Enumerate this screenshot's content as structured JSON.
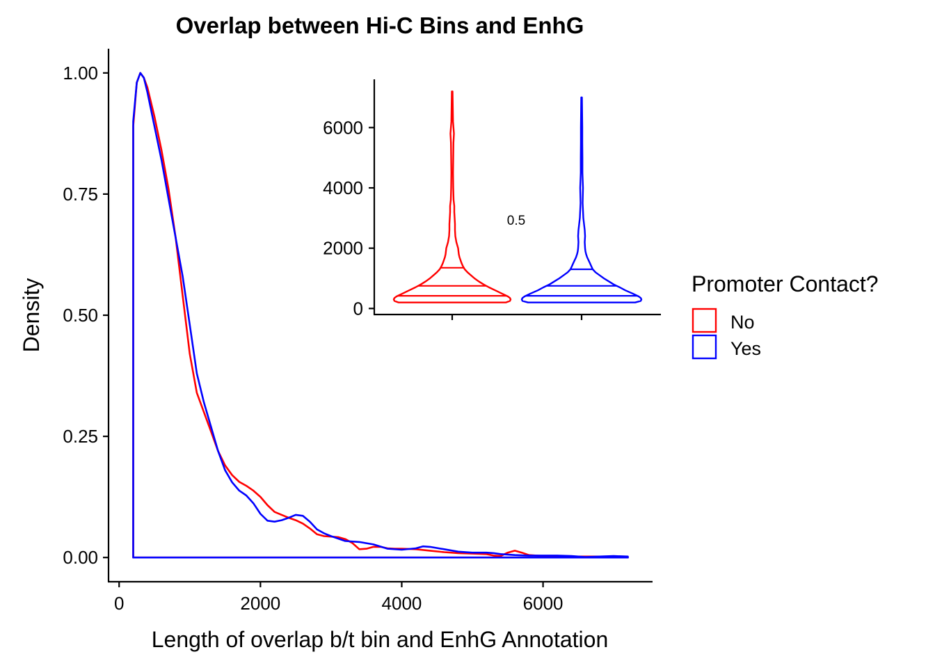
{
  "chart_data": [
    {
      "type": "line",
      "subtype": "density",
      "title": "Overlap between Hi-C Bins and EnhG",
      "xlabel": "Length of overlap b/t bin and EnhG Annotation",
      "ylabel": "Density",
      "xlim": [
        -150,
        7550
      ],
      "ylim": [
        -0.05,
        1.05
      ],
      "x_ticks": [
        0,
        2000,
        4000,
        6000
      ],
      "x_tick_labels": [
        "0",
        "2000",
        "4000",
        "6000"
      ],
      "y_ticks": [
        0,
        0.25,
        0.5,
        0.75,
        1.0
      ],
      "y_tick_labels": [
        "0.00",
        "0.25",
        "0.50",
        "0.75",
        "1.00"
      ],
      "grid": false,
      "series": [
        {
          "name": "No",
          "color": "#FF0000",
          "x": [
            200,
            200,
            250,
            300,
            350,
            400,
            500,
            600,
            700,
            800,
            900,
            1000,
            1100,
            1200,
            1300,
            1400,
            1500,
            1600,
            1700,
            1800,
            1900,
            2000,
            2100,
            2200,
            2300,
            2400,
            2500,
            2600,
            2700,
            2800,
            2900,
            3000,
            3100,
            3200,
            3300,
            3400,
            3500,
            3600,
            3700,
            3800,
            3900,
            4000,
            4200,
            4400,
            4600,
            4800,
            5000,
            5200,
            5300,
            5400,
            5500,
            5600,
            5700,
            5800,
            6000,
            6200,
            6400,
            6600,
            6800,
            7000,
            7200,
            7200
          ],
          "y": [
            0.0,
            0.89,
            0.98,
            1.0,
            0.99,
            0.97,
            0.91,
            0.84,
            0.76,
            0.66,
            0.54,
            0.42,
            0.34,
            0.3,
            0.26,
            0.22,
            0.19,
            0.17,
            0.156,
            0.148,
            0.138,
            0.125,
            0.108,
            0.094,
            0.088,
            0.082,
            0.077,
            0.07,
            0.06,
            0.048,
            0.044,
            0.043,
            0.042,
            0.038,
            0.03,
            0.017,
            0.018,
            0.022,
            0.022,
            0.019,
            0.018,
            0.018,
            0.017,
            0.014,
            0.011,
            0.009,
            0.008,
            0.007,
            0.004,
            0.003,
            0.01,
            0.014,
            0.01,
            0.005,
            0.003,
            0.003,
            0.002,
            0.002,
            0.002,
            0.002,
            0.001,
            0.0
          ]
        },
        {
          "name": "Yes",
          "color": "#0000FF",
          "x": [
            200,
            200,
            250,
            300,
            350,
            400,
            500,
            600,
            700,
            800,
            900,
            1000,
            1100,
            1200,
            1300,
            1400,
            1500,
            1600,
            1700,
            1800,
            1900,
            2000,
            2100,
            2200,
            2300,
            2400,
            2500,
            2600,
            2700,
            2800,
            2900,
            3000,
            3200,
            3400,
            3600,
            3800,
            4000,
            4200,
            4300,
            4400,
            4600,
            4800,
            5000,
            5200,
            5300,
            5400,
            5600,
            5800,
            6000,
            6200,
            6400,
            6600,
            6800,
            7000,
            7200,
            7200
          ],
          "y": [
            0.0,
            0.9,
            0.98,
            1.0,
            0.99,
            0.96,
            0.89,
            0.82,
            0.74,
            0.66,
            0.58,
            0.48,
            0.38,
            0.32,
            0.27,
            0.22,
            0.18,
            0.155,
            0.138,
            0.128,
            0.112,
            0.09,
            0.076,
            0.074,
            0.077,
            0.082,
            0.088,
            0.086,
            0.074,
            0.058,
            0.05,
            0.044,
            0.034,
            0.032,
            0.027,
            0.018,
            0.016,
            0.019,
            0.023,
            0.022,
            0.017,
            0.012,
            0.01,
            0.01,
            0.009,
            0.007,
            0.005,
            0.004,
            0.004,
            0.004,
            0.003,
            0.001,
            0.002,
            0.003,
            0.002,
            0.0
          ]
        }
      ]
    },
    {
      "type": "violin",
      "inset": true,
      "ylim": [
        -200,
        7600
      ],
      "y_ticks": [
        0,
        2000,
        4000,
        6000
      ],
      "y_tick_labels": [
        "0",
        "2000",
        "4000",
        "6000"
      ],
      "x_tick_labels": [
        "",
        ""
      ],
      "grid": false,
      "annotation": "0.5",
      "series": [
        {
          "name": "No",
          "color": "#FF0000",
          "quantiles": [
            420,
            750,
            1350
          ],
          "profile_y": [
            200,
            250,
            300,
            350,
            400,
            500,
            600,
            700,
            800,
            900,
            1000,
            1100,
            1200,
            1300,
            1400,
            1500,
            1600,
            1700,
            1800,
            1900,
            2000,
            2200,
            2400,
            2600,
            2800,
            3000,
            3200,
            3400,
            3600,
            4000,
            4500,
            5000,
            5500,
            5800,
            6200,
            7200
          ],
          "profile_half_width": [
            0.77,
            0.83,
            0.84,
            0.83,
            0.8,
            0.71,
            0.62,
            0.53,
            0.45,
            0.38,
            0.32,
            0.27,
            0.22,
            0.18,
            0.155,
            0.135,
            0.12,
            0.105,
            0.095,
            0.09,
            0.085,
            0.06,
            0.045,
            0.04,
            0.04,
            0.035,
            0.03,
            0.03,
            0.02,
            0.015,
            0.012,
            0.015,
            0.018,
            0.025,
            0.012,
            0.005
          ]
        },
        {
          "name": "Yes",
          "color": "#0000FF",
          "quantiles": [
            420,
            750,
            1300
          ],
          "profile_y": [
            200,
            250,
            300,
            350,
            400,
            500,
            600,
            700,
            800,
            900,
            1000,
            1100,
            1200,
            1300,
            1400,
            1500,
            1600,
            1700,
            1800,
            1900,
            2000,
            2200,
            2400,
            2600,
            2800,
            3000,
            3500,
            4000,
            4500,
            5000,
            5500,
            6000,
            7000
          ],
          "profile_half_width": [
            0.77,
            0.85,
            0.86,
            0.85,
            0.82,
            0.73,
            0.63,
            0.55,
            0.46,
            0.39,
            0.32,
            0.26,
            0.2,
            0.16,
            0.14,
            0.12,
            0.1,
            0.08,
            0.065,
            0.055,
            0.05,
            0.045,
            0.05,
            0.045,
            0.035,
            0.025,
            0.015,
            0.02,
            0.012,
            0.012,
            0.01,
            0.01,
            0.005
          ]
        }
      ]
    }
  ],
  "legend": {
    "title": "Promoter Contact?",
    "items": [
      {
        "label": "No",
        "color": "#FF0000"
      },
      {
        "label": "Yes",
        "color": "#0000FF"
      }
    ]
  }
}
